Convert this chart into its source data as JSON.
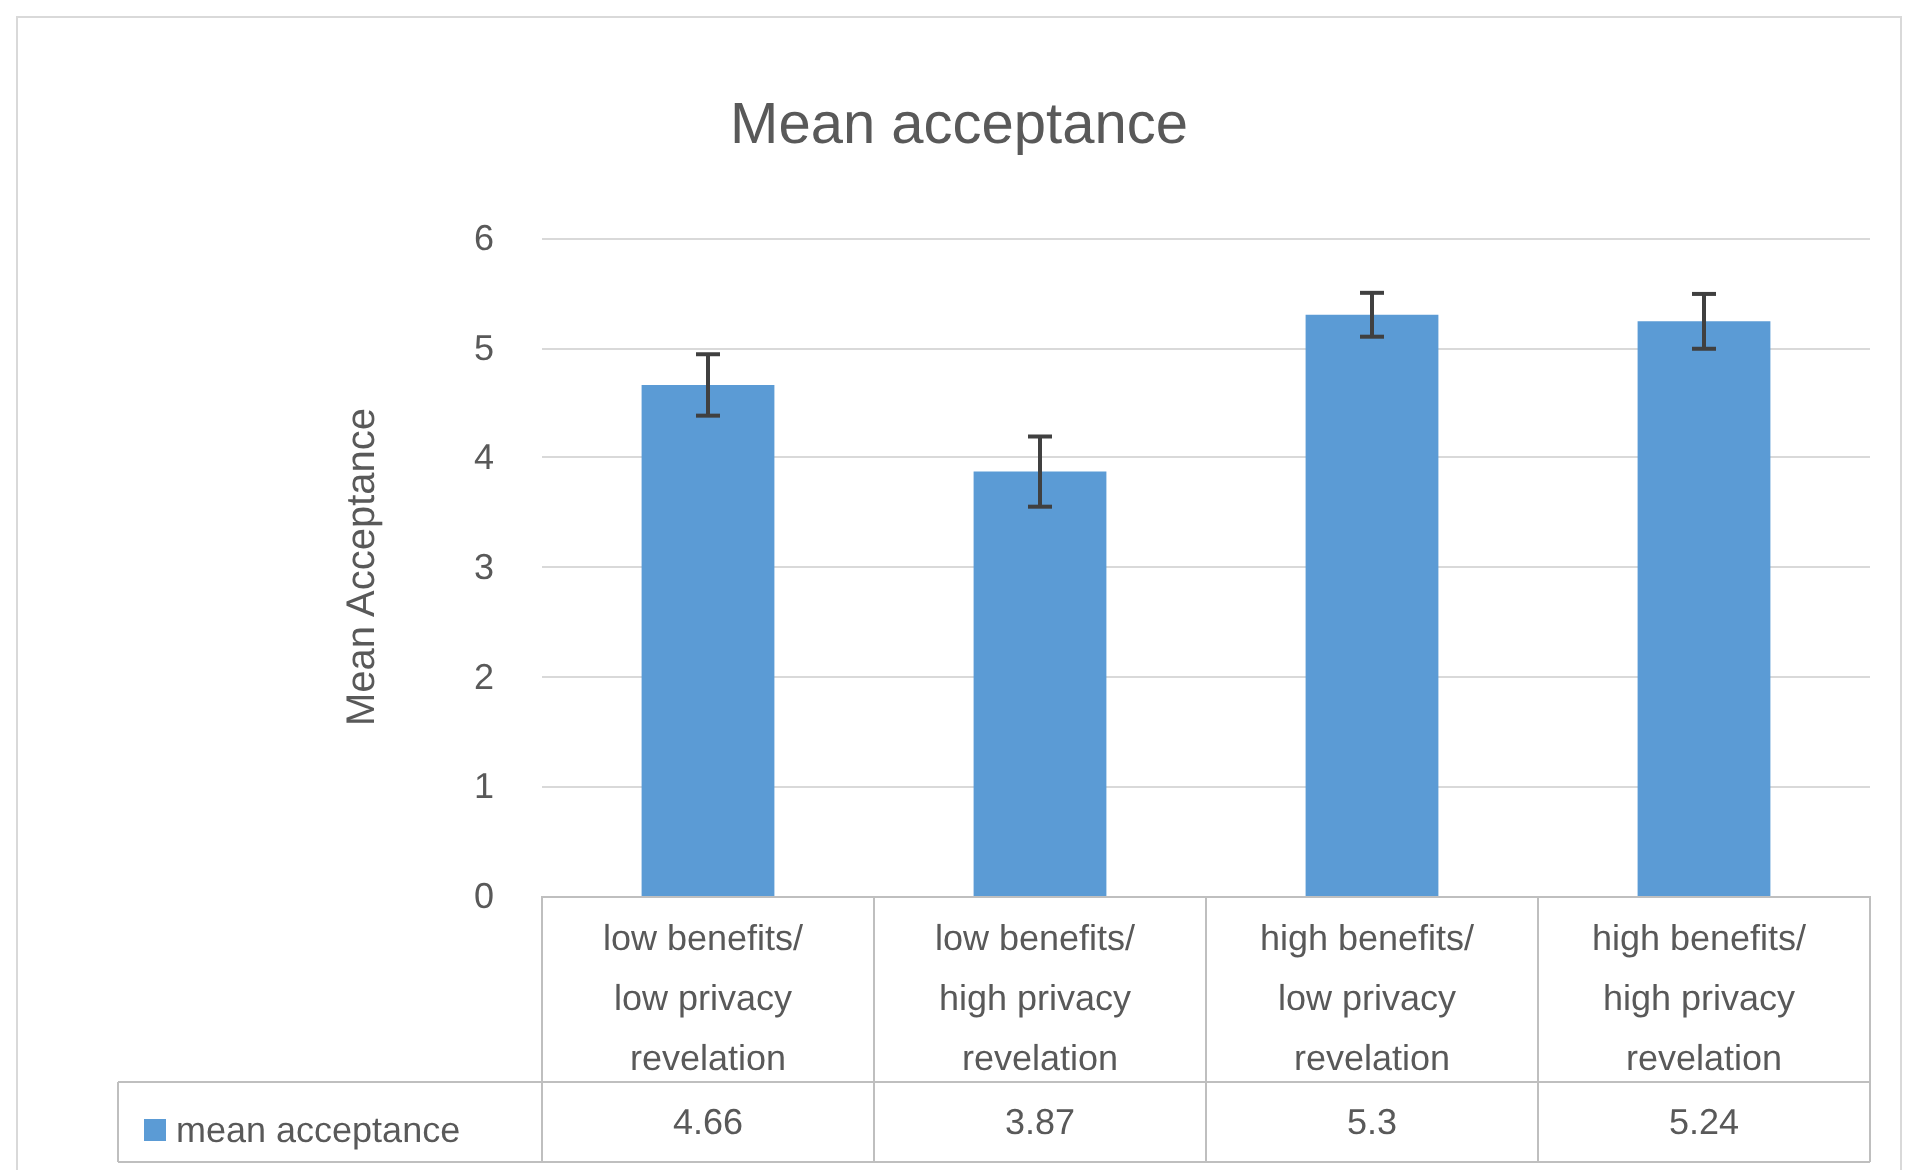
{
  "chart_data": {
    "type": "bar",
    "title": "Mean acceptance",
    "ylabel": "Mean Acceptance",
    "categories": [
      "low benefits/ low privacy revelation",
      "low benefits/ high privacy revelation",
      "high benefits/ low privacy revelation",
      "high benefits/ high privacy revelation"
    ],
    "series": [
      {
        "name": "mean acceptance",
        "color": "#5b9bd5",
        "values": [
          4.66,
          3.87,
          5.3,
          5.24
        ],
        "errors": [
          0.28,
          0.32,
          0.2,
          0.25
        ]
      }
    ],
    "ylim": [
      0,
      6
    ],
    "yticks": [
      0,
      1,
      2,
      3,
      4,
      5,
      6
    ],
    "grid": "y",
    "legend": "bottom",
    "data_labels": true
  }
}
